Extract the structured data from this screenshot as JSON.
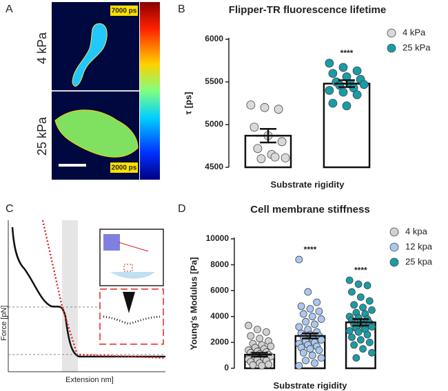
{
  "panels": {
    "A": {
      "label": "A",
      "top_label": "4 kPa",
      "bottom_label": "25 kPa",
      "max_label": "7000 ps",
      "min_label": "2000 ps"
    },
    "C": {
      "label": "C",
      "ylabel": "Force [pN]",
      "xlabel": "Extension nm]"
    }
  },
  "chart_data": [
    {
      "type": "bar",
      "panel": "B",
      "title": "Flipper-TR fluorescence lifetime",
      "xlabel": "Substrate rigidity",
      "ylabel": "τ [ps]",
      "ylim": [
        4500,
        6000
      ],
      "yticks": [
        4500,
        5000,
        5500,
        6000
      ],
      "legend": "right",
      "series": [
        {
          "name": "4 kPa",
          "color": "#d9d9d9",
          "mean": 4870,
          "error": 80,
          "values": [
            5230,
            5200,
            5180,
            4970,
            4870,
            4800,
            4720,
            4650,
            4610,
            4600,
            4620
          ]
        },
        {
          "name": "25 kPa",
          "color": "#1a9ba8",
          "mean": 5480,
          "error": 40,
          "annotation": "****",
          "values": [
            5720,
            5670,
            5630,
            5600,
            5560,
            5530,
            5500,
            5480,
            5470,
            5460,
            5430,
            5400,
            5380,
            5350,
            5250,
            5220
          ]
        }
      ]
    },
    {
      "type": "bar",
      "panel": "D",
      "title": "Cell membrane stiffness",
      "xlabel": "Substrate rigidity",
      "ylabel": "Young's Modulus [Pa]",
      "ylim": [
        0,
        10000
      ],
      "yticks": [
        0,
        2000,
        4000,
        6000,
        8000,
        10000
      ],
      "legend": "right",
      "series": [
        {
          "name": "4 kpa",
          "color": "#d0d0d0",
          "mean": 1050,
          "error": 150,
          "values": [
            3300,
            3000,
            2800,
            2500,
            2300,
            2100,
            1900,
            1800,
            1700,
            1600,
            1500,
            1400,
            1300,
            1250,
            1200,
            1100,
            1050,
            1000,
            950,
            900,
            850,
            800,
            700,
            650,
            600,
            500,
            400,
            300,
            250,
            200
          ]
        },
        {
          "name": "12 kpa",
          "color": "#a9c8f0",
          "mean": 2500,
          "error": 200,
          "annotation": "****",
          "values": [
            8400,
            5900,
            5100,
            4800,
            4600,
            4400,
            4200,
            4000,
            3800,
            3600,
            3400,
            3200,
            3000,
            2800,
            2700,
            2600,
            2500,
            2400,
            2300,
            2200,
            2100,
            2000,
            1900,
            1800,
            1700,
            1600,
            1500,
            1400,
            1200,
            1000,
            800,
            600,
            400,
            200
          ]
        },
        {
          "name": "25 kpa",
          "color": "#1b9ba5",
          "mean": 3550,
          "error": 250,
          "annotation": "****",
          "values": [
            6800,
            6500,
            6400,
            5900,
            5500,
            5200,
            4900,
            4700,
            4500,
            4300,
            4200,
            4000,
            3900,
            3800,
            3700,
            3600,
            3500,
            3400,
            3300,
            3200,
            3100,
            3000,
            2900,
            2800,
            2600,
            2400,
            2200,
            2000,
            1800,
            1500,
            1200,
            800
          ]
        }
      ]
    }
  ]
}
